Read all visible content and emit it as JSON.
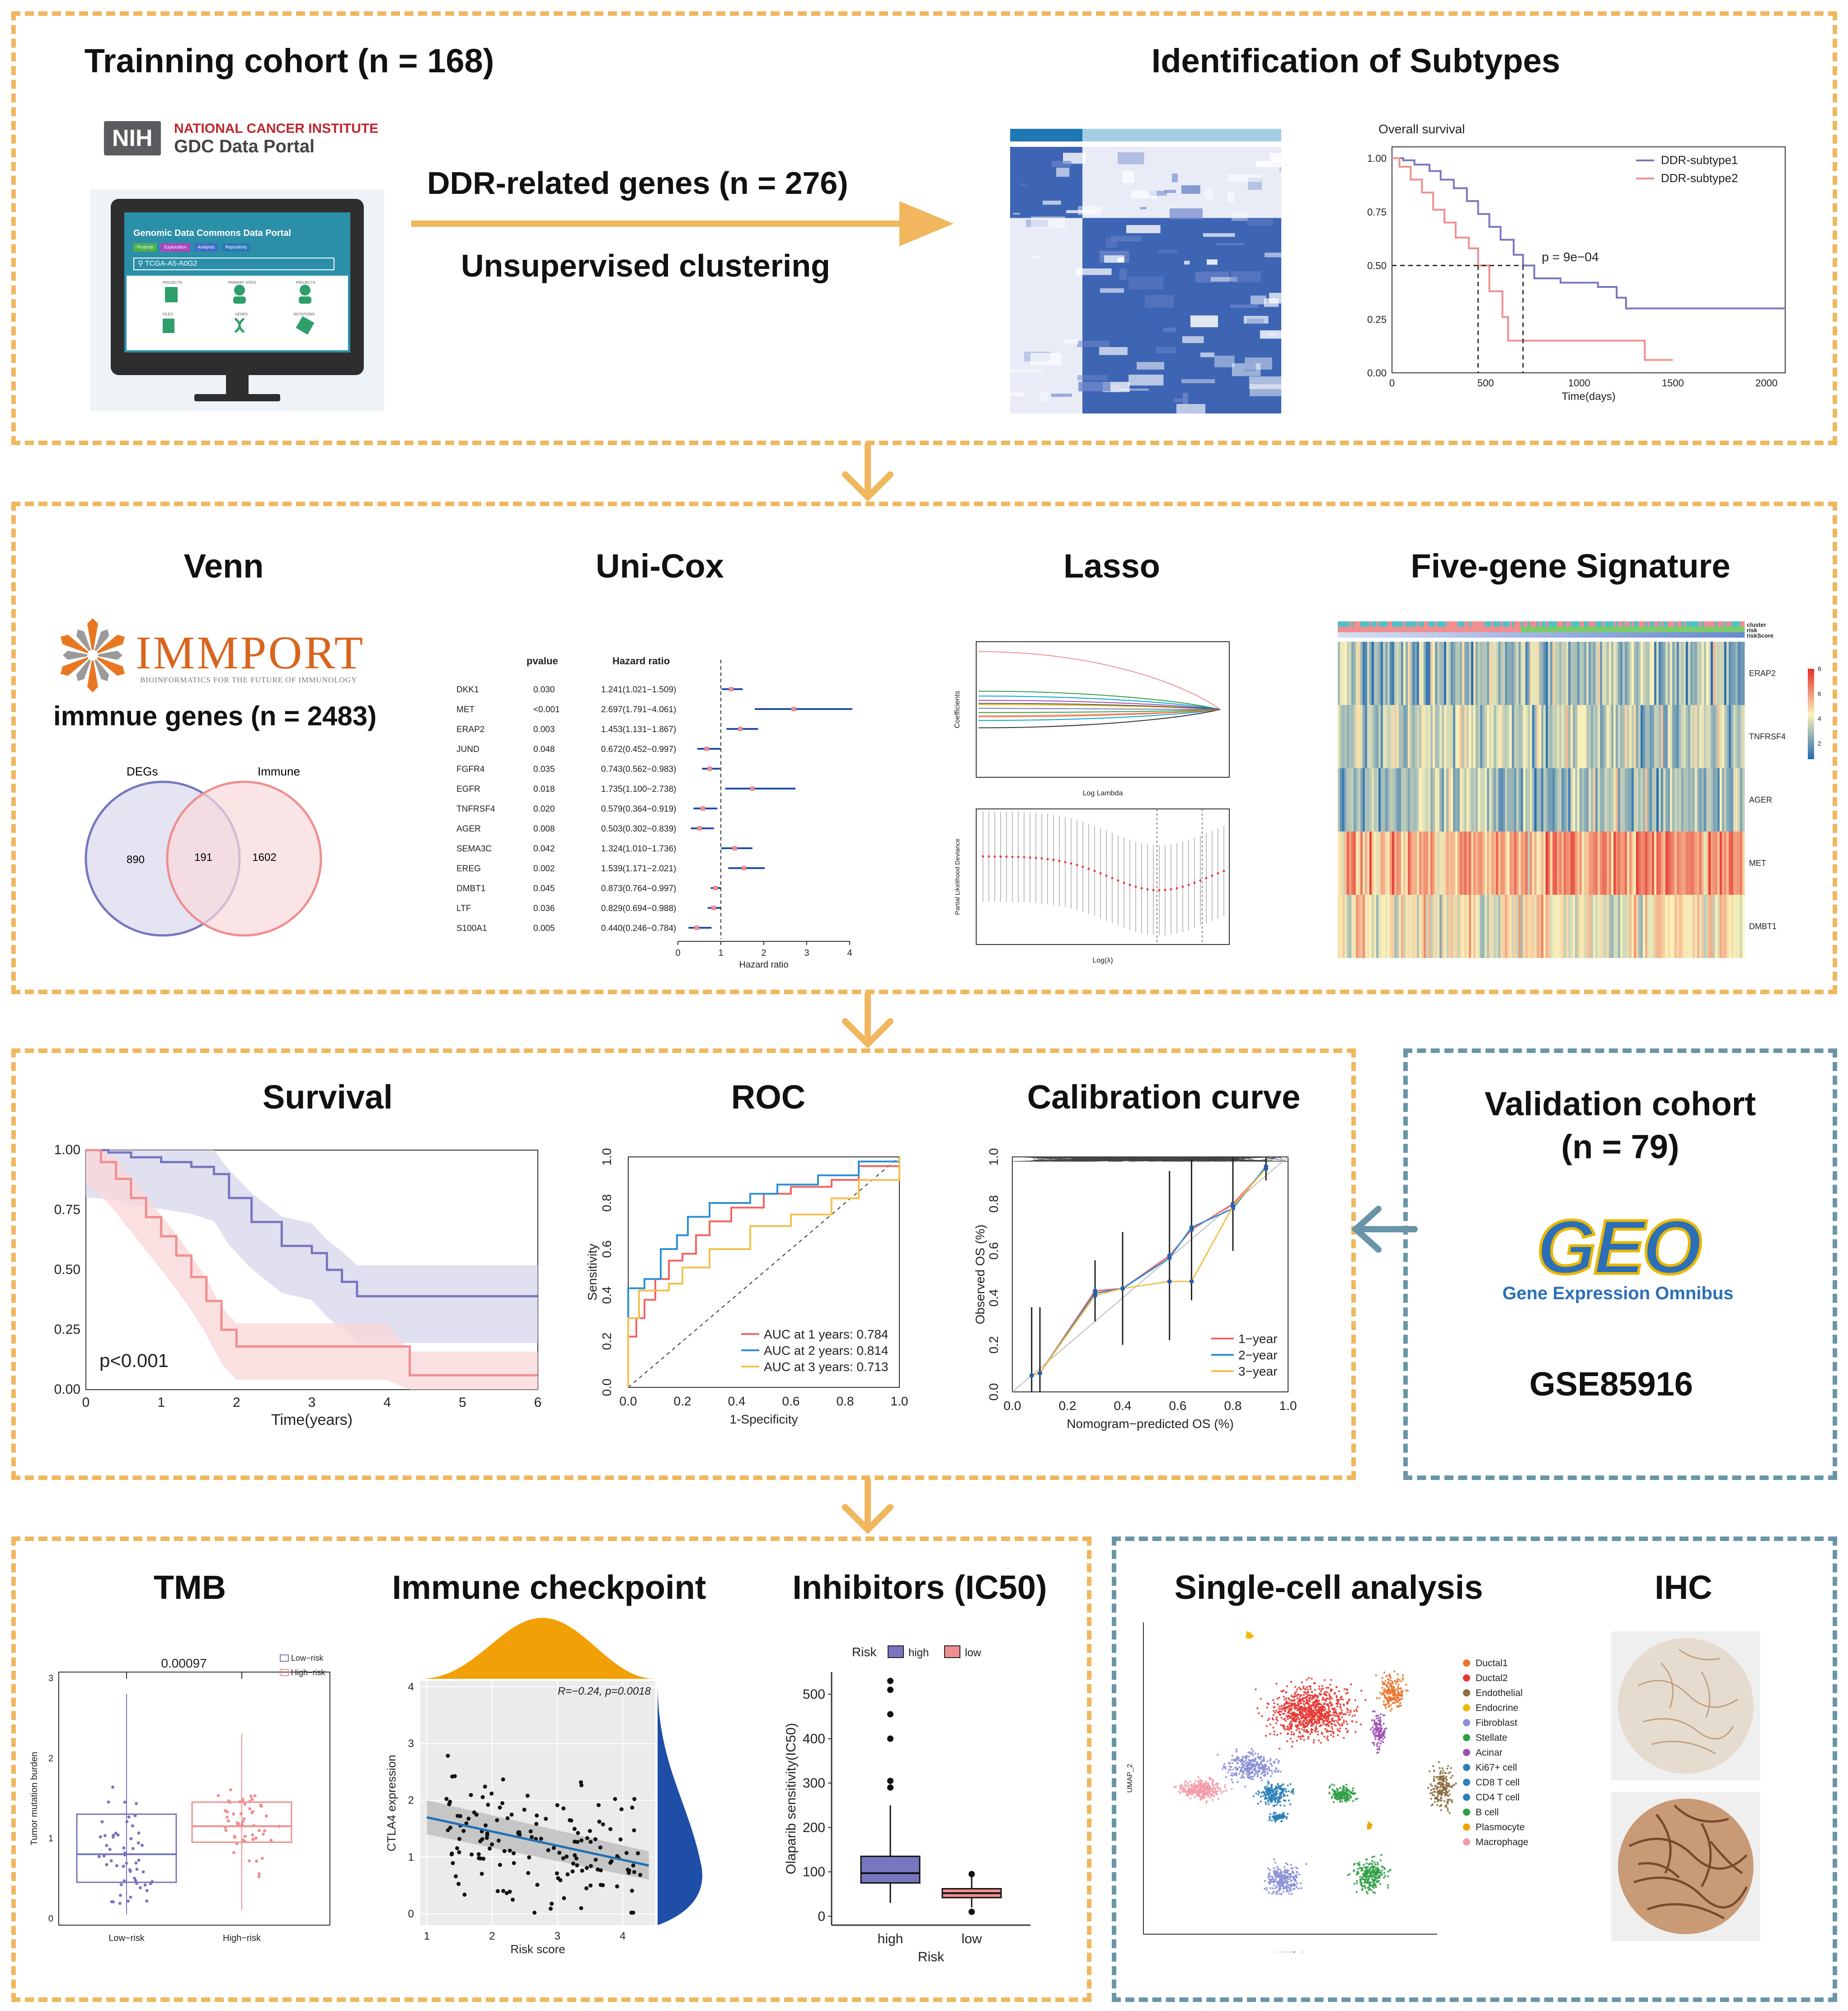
{
  "colors": {
    "orange_frame": "#F0B75E",
    "blue_frame": "#6A95A8",
    "subtype1": "#7776BF",
    "subtype2": "#F08E90",
    "heat_dark": "#1F4EA8"
  },
  "section1": {
    "training_title": "Trainning cohort (n = 168)",
    "nih_badge": "NIH",
    "nci_label": "NATIONAL CANCER INSTITUTE",
    "gdc_label": "GDC Data Portal",
    "portal_header": "Genomic Data Commons Data Portal",
    "portal_search": "TCGA-A5-A0G2",
    "portal_tabs": [
      "Projects",
      "Exploration",
      "Analysis",
      "Repository"
    ],
    "portal_items": [
      "PROJECTS",
      "PRIMARY SITES",
      "PROJECTS",
      "FILES",
      "GENES",
      "MUTATIONS"
    ],
    "arrow_label1": "DDR-related genes  (n = 276)",
    "arrow_label2": "Unsupervised clustering",
    "subtypes_title": "Identification of Subtypes",
    "km_title": "Overall survival",
    "km_legend": [
      "DDR-subtype1",
      "DDR-subtype2"
    ],
    "km_pvalue": "p = 9e−04",
    "km_xlabel": "Time(days)",
    "km_xticks": [
      "0",
      "500",
      "1000",
      "1500",
      "2000"
    ],
    "km_yticks": [
      "0.00",
      "0.25",
      "0.50",
      "0.75",
      "1.00"
    ]
  },
  "section2": {
    "venn_title": "Venn",
    "immport_logo": "IMMPORT",
    "immport_tagline": "BIOINFORMATICS FOR THE FUTURE OF IMMUNOLOGY",
    "immune_genes": "immnue genes  (n = 2483)",
    "venn_labels": [
      "DEGs",
      "Immune"
    ],
    "venn_counts": [
      "890",
      "191",
      "1602"
    ],
    "unicox_title": "Uni-Cox",
    "unicox_headers": [
      "pvalue",
      "Hazard ratio"
    ],
    "unicox_xlabel": "Hazard ratio",
    "unicox_xticks": [
      "0",
      "1",
      "2",
      "3",
      "4"
    ],
    "lasso_title": "Lasso",
    "lasso_xlabel1": "Log Lambda",
    "lasso_ylabel1": "Coefficients",
    "lasso_xlabel2": "Log(λ)",
    "lasso_ylabel2": "Partial Likelihood Deviance",
    "signature_title": "Five-gene Signature",
    "signature_tracks": [
      "cluster",
      "risk",
      "riskScore"
    ],
    "signature_genes": [
      "ERAP2",
      "TNFRSF4",
      "AGER",
      "MET",
      "DMBT1"
    ],
    "signature_scale": [
      "8",
      "6",
      "4",
      "2"
    ]
  },
  "forest": [
    {
      "gene": "DKK1",
      "p": "0.030",
      "hr": "1.241(1.021−1.509)",
      "est": 1.241,
      "lo": 1.021,
      "hi": 1.509
    },
    {
      "gene": "MET",
      "p": "<0.001",
      "hr": "2.697(1.791−4.061)",
      "est": 2.697,
      "lo": 1.791,
      "hi": 4.061
    },
    {
      "gene": "ERAP2",
      "p": "0.003",
      "hr": "1.453(1.131−1.867)",
      "est": 1.453,
      "lo": 1.131,
      "hi": 1.867
    },
    {
      "gene": "JUND",
      "p": "0.048",
      "hr": "0.672(0.452−0.997)",
      "est": 0.672,
      "lo": 0.452,
      "hi": 0.997
    },
    {
      "gene": "FGFR4",
      "p": "0.035",
      "hr": "0.743(0.562−0.983)",
      "est": 0.743,
      "lo": 0.562,
      "hi": 0.983
    },
    {
      "gene": "EGFR",
      "p": "0.018",
      "hr": "1.735(1.100−2.738)",
      "est": 1.735,
      "lo": 1.1,
      "hi": 2.738
    },
    {
      "gene": "TNFRSF4",
      "p": "0.020",
      "hr": "0.579(0.364−0.919)",
      "est": 0.579,
      "lo": 0.364,
      "hi": 0.919
    },
    {
      "gene": "AGER",
      "p": "0.008",
      "hr": "0.503(0.302−0.839)",
      "est": 0.503,
      "lo": 0.302,
      "hi": 0.839
    },
    {
      "gene": "SEMA3C",
      "p": "0.042",
      "hr": "1.324(1.010−1.736)",
      "est": 1.324,
      "lo": 1.01,
      "hi": 1.736
    },
    {
      "gene": "EREG",
      "p": "0.002",
      "hr": "1.539(1.171−2.021)",
      "est": 1.539,
      "lo": 1.171,
      "hi": 2.021
    },
    {
      "gene": "DMBT1",
      "p": "0.045",
      "hr": "0.873(0.764−0.997)",
      "est": 0.873,
      "lo": 0.764,
      "hi": 0.997
    },
    {
      "gene": "LTF",
      "p": "0.036",
      "hr": "0.829(0.694−0.988)",
      "est": 0.829,
      "lo": 0.694,
      "hi": 0.988
    },
    {
      "gene": "S100A1",
      "p": "0.005",
      "hr": "0.440(0.246−0.784)",
      "est": 0.44,
      "lo": 0.246,
      "hi": 0.784
    }
  ],
  "section3": {
    "survival_title": "Survival",
    "survival_p": "p<0.001",
    "survival_xlabel": "Time(years)",
    "survival_xticks": [
      "0",
      "1",
      "2",
      "3",
      "4",
      "5",
      "6"
    ],
    "survival_yticks": [
      "0.00",
      "0.25",
      "0.50",
      "0.75",
      "1.00"
    ],
    "roc_title": "ROC",
    "roc_xlabel": "1-Specificity",
    "roc_ylabel": "Sensitivity",
    "roc_legend": [
      "AUC at 1 years: 0.784",
      "AUC at 2 years: 0.814",
      "AUC at 3 years: 0.713"
    ],
    "roc_ticks": [
      "0.0",
      "0.2",
      "0.4",
      "0.6",
      "0.8",
      "1.0"
    ],
    "calib_title": "Calibration curve",
    "calib_xlabel": "Nomogram−predicted OS (%)",
    "calib_ylabel": "Observed OS (%)",
    "calib_legend": [
      "1−year",
      "2−year",
      "3−year"
    ],
    "validation_title1": "Validation cohort",
    "validation_title2": "(n = 79)",
    "geo_logo": "GEO",
    "geo_sub": "Gene Expression Omnibus",
    "geo_accession": "GSE85916"
  },
  "section4": {
    "tmb_title": "TMB",
    "tmb_p": "0.00097",
    "tmb_legend": [
      "Low−risk",
      "High−risk"
    ],
    "tmb_ylabel": "Tumor mutation burden",
    "tmb_xticks": [
      "Low−risk",
      "High−risk"
    ],
    "tmb_yticks": [
      "0",
      "1",
      "2",
      "3"
    ],
    "checkpoint_title": "Immune checkpoint",
    "checkpoint_stat": "R=−0.24, p=0.0018",
    "checkpoint_xlabel": "Risk score",
    "checkpoint_ylabel": "CTLA4 expression",
    "checkpoint_xticks": [
      "1",
      "2",
      "3",
      "4"
    ],
    "checkpoint_yticks": [
      "0",
      "1",
      "2",
      "3",
      "4"
    ],
    "ic50_title": "Inhibitors (IC50)",
    "ic50_legend_title": "Risk",
    "ic50_legend": [
      "high",
      "low"
    ],
    "ic50_ylabel": "Olaparib sensitivity(IC50)",
    "ic50_xlabel": "Risk",
    "ic50_yticks": [
      "0",
      "100",
      "200",
      "300",
      "400",
      "500"
    ],
    "singlecell_title": "Single-cell analysis",
    "umap_xlabel": "UMAP_1",
    "umap_ylabel": "UMAP_2",
    "umap_cells": [
      {
        "name": "Ductal1",
        "color": "#E8762C"
      },
      {
        "name": "Ductal2",
        "color": "#E53935"
      },
      {
        "name": "Endothelial",
        "color": "#8C6D3F"
      },
      {
        "name": "Endocrine",
        "color": "#F2B705"
      },
      {
        "name": "Fibroblast",
        "color": "#8A8FD6"
      },
      {
        "name": "Stellate",
        "color": "#2E9E44"
      },
      {
        "name": "Acinar",
        "color": "#9C4FB0"
      },
      {
        "name": "Ki67+ cell",
        "color": "#2C7FB8"
      },
      {
        "name": "CD8 T cell",
        "color": "#2C7FB8"
      },
      {
        "name": "CD4 T cell",
        "color": "#2C7FB8"
      },
      {
        "name": "B cell",
        "color": "#2E9E44"
      },
      {
        "name": "Plasmocyte",
        "color": "#F0A500"
      },
      {
        "name": "Macrophage",
        "color": "#F49AA8"
      }
    ],
    "ihc_title": "IHC"
  }
}
